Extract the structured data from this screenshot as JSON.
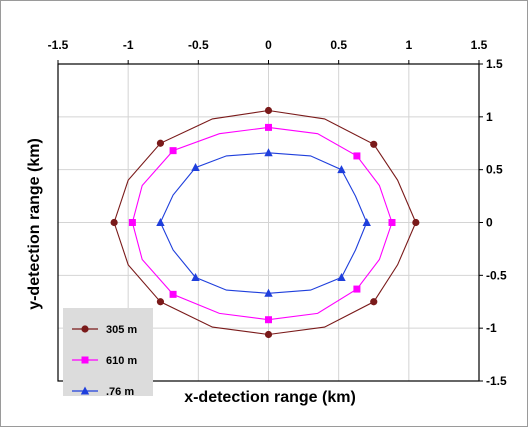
{
  "chart_data": {
    "type": "line",
    "title": "",
    "xlabel": "x-detection range (km)",
    "ylabel": "y-detection range (km)",
    "xlim": [
      -1.5,
      1.5
    ],
    "ylim": [
      -1.5,
      1.5
    ],
    "x_ticks": [
      "-1.5",
      "-1",
      "-0.5",
      "0",
      "0.5",
      "1",
      "1.5"
    ],
    "y_ticks": [
      "1.5",
      "1",
      "0.5",
      "0",
      "-0.5",
      "-1",
      "-1.5"
    ],
    "grid": true,
    "legend_position": "bottom-left",
    "series": [
      {
        "name": "305 m",
        "color": "#7a1a1a",
        "marker": "circle",
        "markers": [
          {
            "x": 0,
            "y": 1.06
          },
          {
            "x": 0.75,
            "y": 0.74
          },
          {
            "x": 1.05,
            "y": 0
          },
          {
            "x": 0.75,
            "y": -0.75
          },
          {
            "x": 0,
            "y": -1.06
          },
          {
            "x": -0.77,
            "y": -0.75
          },
          {
            "x": -1.1,
            "y": 0
          },
          {
            "x": -0.77,
            "y": 0.75
          }
        ],
        "curve": [
          {
            "x": 0,
            "y": 1.06
          },
          {
            "x": 0.4,
            "y": 0.98
          },
          {
            "x": 0.75,
            "y": 0.74
          },
          {
            "x": 0.92,
            "y": 0.4
          },
          {
            "x": 1.05,
            "y": 0
          },
          {
            "x": 0.92,
            "y": -0.4
          },
          {
            "x": 0.75,
            "y": -0.75
          },
          {
            "x": 0.4,
            "y": -0.99
          },
          {
            "x": 0,
            "y": -1.06
          },
          {
            "x": -0.4,
            "y": -0.99
          },
          {
            "x": -0.77,
            "y": -0.75
          },
          {
            "x": -1.0,
            "y": -0.4
          },
          {
            "x": -1.1,
            "y": 0
          },
          {
            "x": -1.0,
            "y": 0.4
          },
          {
            "x": -0.77,
            "y": 0.75
          },
          {
            "x": -0.4,
            "y": 0.98
          },
          {
            "x": 0,
            "y": 1.06
          }
        ]
      },
      {
        "name": "610 m",
        "color": "#ff00ff",
        "marker": "square",
        "markers": [
          {
            "x": 0,
            "y": 0.9
          },
          {
            "x": 0.63,
            "y": 0.63
          },
          {
            "x": 0.88,
            "y": 0
          },
          {
            "x": 0.63,
            "y": -0.63
          },
          {
            "x": 0,
            "y": -0.92
          },
          {
            "x": -0.68,
            "y": -0.68
          },
          {
            "x": -0.97,
            "y": 0
          },
          {
            "x": -0.68,
            "y": 0.68
          }
        ],
        "curve": [
          {
            "x": 0,
            "y": 0.9
          },
          {
            "x": 0.35,
            "y": 0.84
          },
          {
            "x": 0.63,
            "y": 0.63
          },
          {
            "x": 0.79,
            "y": 0.35
          },
          {
            "x": 0.88,
            "y": 0
          },
          {
            "x": 0.79,
            "y": -0.35
          },
          {
            "x": 0.63,
            "y": -0.63
          },
          {
            "x": 0.35,
            "y": -0.86
          },
          {
            "x": 0,
            "y": -0.92
          },
          {
            "x": -0.35,
            "y": -0.86
          },
          {
            "x": -0.68,
            "y": -0.68
          },
          {
            "x": -0.9,
            "y": -0.35
          },
          {
            "x": -0.97,
            "y": 0
          },
          {
            "x": -0.9,
            "y": 0.35
          },
          {
            "x": -0.68,
            "y": 0.68
          },
          {
            "x": -0.35,
            "y": 0.84
          },
          {
            "x": 0,
            "y": 0.9
          }
        ]
      },
      {
        "name": ".76 m",
        "color": "#1f3fdc",
        "marker": "triangle",
        "markers": [
          {
            "x": 0,
            "y": 0.66
          },
          {
            "x": 0.52,
            "y": 0.5
          },
          {
            "x": 0.7,
            "y": 0
          },
          {
            "x": 0.52,
            "y": -0.52
          },
          {
            "x": 0,
            "y": -0.67
          },
          {
            "x": -0.52,
            "y": -0.52
          },
          {
            "x": -0.77,
            "y": 0
          },
          {
            "x": -0.52,
            "y": 0.52
          }
        ],
        "curve": [
          {
            "x": 0,
            "y": 0.66
          },
          {
            "x": 0.3,
            "y": 0.63
          },
          {
            "x": 0.52,
            "y": 0.5
          },
          {
            "x": 0.62,
            "y": 0.25
          },
          {
            "x": 0.7,
            "y": 0
          },
          {
            "x": 0.62,
            "y": -0.26
          },
          {
            "x": 0.52,
            "y": -0.52
          },
          {
            "x": 0.3,
            "y": -0.64
          },
          {
            "x": 0,
            "y": -0.67
          },
          {
            "x": -0.3,
            "y": -0.64
          },
          {
            "x": -0.52,
            "y": -0.52
          },
          {
            "x": -0.68,
            "y": -0.26
          },
          {
            "x": -0.77,
            "y": 0
          },
          {
            "x": -0.68,
            "y": 0.26
          },
          {
            "x": -0.52,
            "y": 0.52
          },
          {
            "x": -0.3,
            "y": 0.63
          },
          {
            "x": 0,
            "y": 0.66
          }
        ]
      }
    ]
  }
}
